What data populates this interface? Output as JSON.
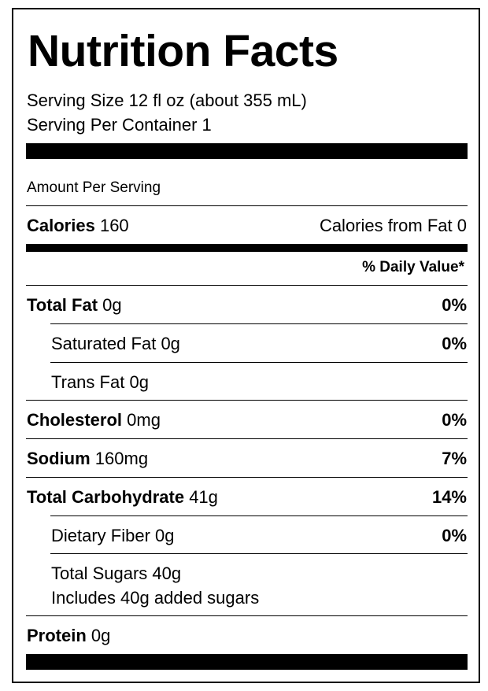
{
  "title": "Nutrition Facts",
  "serving_size": "Serving Size 12 fl oz (about 355 mL)",
  "servings_per_container": "Serving Per Container 1",
  "amount_per_serving": "Amount Per Serving",
  "calories": {
    "label": "Calories",
    "value": "160"
  },
  "calories_from_fat": "Calories from Fat 0",
  "daily_value_header": "% Daily Value*",
  "nutrients": {
    "total_fat": {
      "label": "Total Fat",
      "amount": "0g",
      "dv": "0%"
    },
    "saturated_fat": {
      "label": "Saturated Fat",
      "amount": "0g",
      "dv": "0%"
    },
    "trans_fat": {
      "label": "Trans Fat",
      "amount": "0g"
    },
    "cholesterol": {
      "label": "Cholesterol",
      "amount": "0mg",
      "dv": "0%"
    },
    "sodium": {
      "label": "Sodium",
      "amount": "160mg",
      "dv": "7%"
    },
    "total_carbohydrate": {
      "label": "Total Carbohydrate",
      "amount": "41g",
      "dv": "14%"
    },
    "dietary_fiber": {
      "label": "Dietary Fiber",
      "amount": "0g",
      "dv": "0%"
    },
    "total_sugars": {
      "label": "Total Sugars",
      "amount": "40g"
    },
    "added_sugars": "Includes 40g added sugars",
    "protein": {
      "label": "Protein",
      "amount": "0g"
    }
  }
}
